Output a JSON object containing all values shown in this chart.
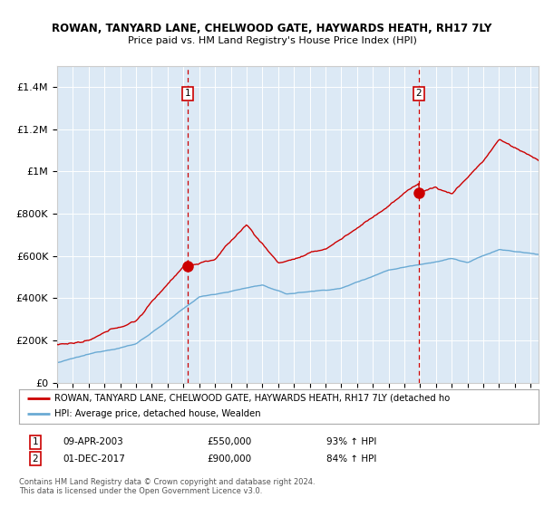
{
  "title1": "ROWAN, TANYARD LANE, CHELWOOD GATE, HAYWARDS HEATH, RH17 7LY",
  "title2": "Price paid vs. HM Land Registry's House Price Index (HPI)",
  "ylim": [
    0,
    1500000
  ],
  "yticks": [
    0,
    200000,
    400000,
    600000,
    800000,
    1000000,
    1200000,
    1400000
  ],
  "ytick_labels": [
    "£0",
    "£200K",
    "£400K",
    "£600K",
    "£800K",
    "£1M",
    "£1.2M",
    "£1.4M"
  ],
  "plot_bg": "#dce9f5",
  "hpi_color": "#6aaad4",
  "price_color": "#cc0000",
  "marker1_x": 2003.27,
  "marker1_y": 550000,
  "marker2_x": 2017.92,
  "marker2_y": 900000,
  "marker1_label": "09-APR-2003",
  "marker2_label": "01-DEC-2017",
  "marker1_price": "£550,000",
  "marker2_price": "£900,000",
  "marker1_pct": "93% ↑ HPI",
  "marker2_pct": "84% ↑ HPI",
  "legend_line1": "ROWAN, TANYARD LANE, CHELWOOD GATE, HAYWARDS HEATH, RH17 7LY (detached ho",
  "legend_line2": "HPI: Average price, detached house, Wealden",
  "footnote": "Contains HM Land Registry data © Crown copyright and database right 2024.\nThis data is licensed under the Open Government Licence v3.0.",
  "xmin": 1995,
  "xmax": 2025.5
}
